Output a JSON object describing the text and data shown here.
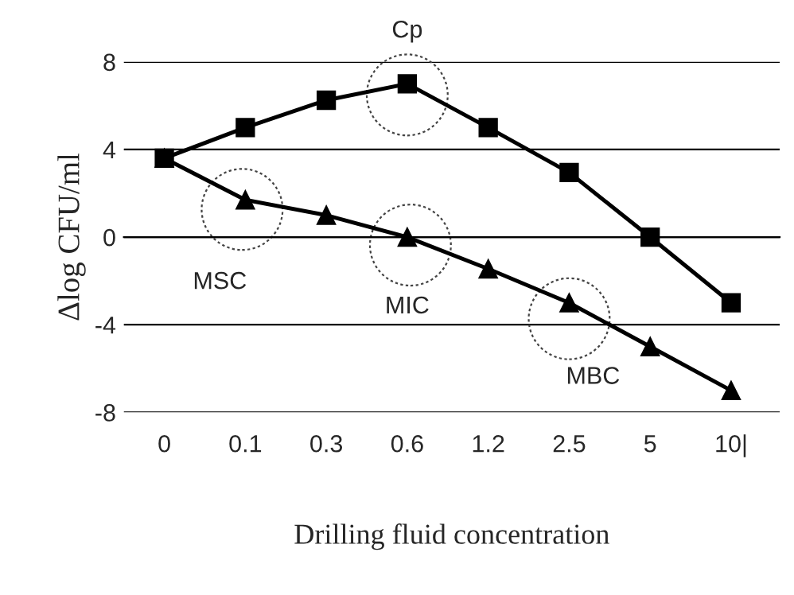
{
  "chart_data": {
    "type": "line",
    "xlabel": "Drilling fluid concentration",
    "ylabel": "Δlog CFU/ml",
    "categories": [
      "0",
      "0.1",
      "0.3",
      "0.6",
      "1.2",
      "2.5",
      "5",
      "10|"
    ],
    "series": [
      {
        "color": "#000000",
        "marker": "square",
        "values": [
          3.6,
          5.0,
          6.25,
          7.0,
          5.0,
          2.95,
          0,
          -3.0
        ]
      },
      {
        "color": "#000000",
        "marker": "triangle",
        "values": [
          3.6,
          1.7,
          1.0,
          0,
          -1.45,
          -3.0,
          -5.0,
          -7.0
        ]
      }
    ],
    "annotations": [
      {
        "text": "Cp",
        "x": "0.6",
        "y": 7.0
      },
      {
        "text": "MSC",
        "x": "0.1",
        "y": 1.7
      },
      {
        "text": "MIC",
        "x": "0.6",
        "y": 0
      },
      {
        "text": "MBC",
        "x": "2.5",
        "y": -3.0
      }
    ],
    "ylim": [
      -8,
      8
    ],
    "yticks": [
      -8,
      -4,
      0,
      4,
      8
    ],
    "grid": "y",
    "legend": false,
    "line_style": "solid"
  }
}
